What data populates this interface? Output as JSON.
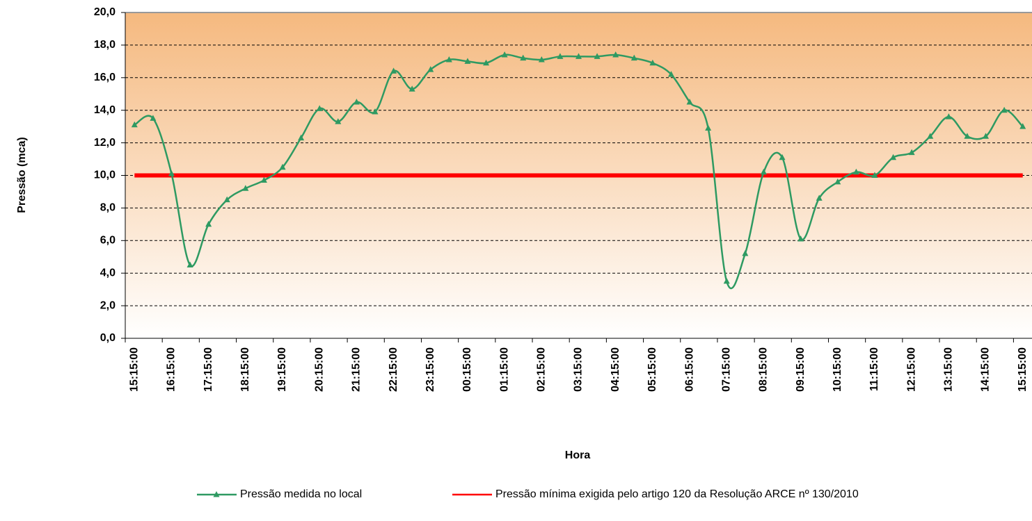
{
  "chart_data": {
    "type": "line",
    "y_label": "Pressão (mca)",
    "x_label": "Hora",
    "categories": [
      "15:15:00",
      null,
      "16:15:00",
      null,
      "17:15:00",
      null,
      "18:15:00",
      null,
      "19:15:00",
      null,
      "20:15:00",
      null,
      "21:15:00",
      null,
      "22:15:00",
      null,
      "23:15:00",
      null,
      "00:15:00",
      null,
      "01:15:00",
      null,
      "02:15:00",
      null,
      "03:15:00",
      null,
      "04:15:00",
      null,
      "05:15:00",
      null,
      "06:15:00",
      null,
      "07:15:00",
      null,
      "08:15:00",
      null,
      "09:15:00",
      null,
      "10:15:00",
      null,
      "11:15:00",
      null,
      "12:15:00",
      null,
      "13:15:00",
      null,
      "14:15:00",
      null,
      "15:15:00"
    ],
    "series": [
      {
        "name": "Pressão medida no local",
        "color": "#2e9a62",
        "marker": "triangle",
        "values": [
          13.1,
          13.5,
          10.1,
          4.5,
          7.0,
          8.5,
          9.2,
          9.7,
          10.5,
          12.3,
          14.1,
          13.3,
          14.5,
          13.9,
          16.4,
          15.3,
          16.5,
          17.1,
          17.0,
          16.9,
          17.4,
          17.2,
          17.1,
          17.3,
          17.3,
          17.3,
          17.4,
          17.2,
          16.9,
          16.2,
          14.5,
          12.9,
          3.5,
          5.2,
          10.2,
          11.1,
          6.1,
          8.6,
          9.6,
          10.2,
          10.0,
          11.1,
          11.4,
          12.4,
          13.6,
          12.4,
          12.4,
          14.0,
          13.0
        ]
      },
      {
        "name": "Pressão mínima exigida pelo artigo 120 da Resolução ARCE nº 130/2010",
        "color": "#ff0000",
        "values": [
          10,
          10,
          10,
          10,
          10,
          10,
          10,
          10,
          10,
          10,
          10,
          10,
          10,
          10,
          10,
          10,
          10,
          10,
          10,
          10,
          10,
          10,
          10,
          10,
          10,
          10,
          10,
          10,
          10,
          10,
          10,
          10,
          10,
          10,
          10,
          10,
          10,
          10,
          10,
          10,
          10,
          10,
          10,
          10,
          10,
          10,
          10,
          10,
          10
        ]
      }
    ],
    "ylim": [
      0,
      20
    ],
    "yticks": [
      {
        "value": 0,
        "label": "0,0"
      },
      {
        "value": 2,
        "label": "2,0"
      },
      {
        "value": 4,
        "label": "4,0"
      },
      {
        "value": 6,
        "label": "6,0"
      },
      {
        "value": 8,
        "label": "8,0"
      },
      {
        "value": 10,
        "label": "10,0"
      },
      {
        "value": 12,
        "label": "12,0"
      },
      {
        "value": 14,
        "label": "14,0"
      },
      {
        "value": 16,
        "label": "16,0"
      },
      {
        "value": 18,
        "label": "18,0"
      },
      {
        "value": 20,
        "label": "20,0"
      }
    ],
    "grid": true,
    "legend": "bottom"
  }
}
